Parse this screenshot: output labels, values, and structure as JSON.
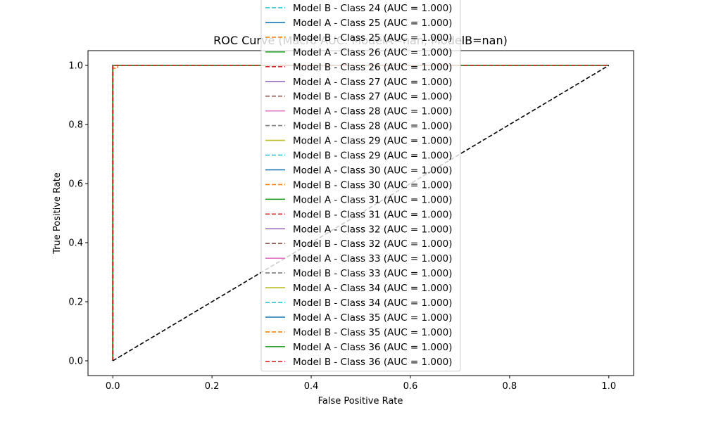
{
  "chart_data": {
    "type": "line",
    "title": "ROC Curve (Macro AUC: ModelA=nan, ModelB=nan)",
    "xlabel": "False Positive Rate",
    "ylabel": "True Positive Rate",
    "xlim": [
      -0.05,
      1.05
    ],
    "ylim": [
      -0.05,
      1.05
    ],
    "xticks": [
      "0.0",
      "0.2",
      "0.4",
      "0.6",
      "0.8",
      "1.0"
    ],
    "yticks": [
      "0.0",
      "0.2",
      "0.4",
      "0.6",
      "0.8",
      "1.0"
    ],
    "grid": false,
    "legend_position": "upper-center",
    "diagonal": {
      "x": [
        0,
        1
      ],
      "y": [
        0,
        1
      ],
      "color": "#000000",
      "style": "dashed"
    },
    "series": [
      {
        "name": "Model B - Class 24 (AUC = 1.000)",
        "color": "#17becf",
        "style": "dashed",
        "x": [
          0,
          0,
          1
        ],
        "y": [
          0,
          1,
          1
        ]
      },
      {
        "name": "Model A - Class 25 (AUC = 1.000)",
        "color": "#1f77b4",
        "style": "solid",
        "x": [
          0,
          0,
          1
        ],
        "y": [
          0,
          1,
          1
        ]
      },
      {
        "name": "Model B - Class 25 (AUC = 1.000)",
        "color": "#ff7f0e",
        "style": "dashed",
        "x": [
          0,
          0,
          0.01,
          0.01,
          1
        ],
        "y": [
          0,
          0.99,
          0.99,
          1,
          1
        ]
      },
      {
        "name": "Model A - Class 26 (AUC = 1.000)",
        "color": "#2ca02c",
        "style": "solid",
        "x": [
          0,
          0,
          1
        ],
        "y": [
          0,
          1,
          1
        ]
      },
      {
        "name": "Model B - Class 26 (AUC = 1.000)",
        "color": "#d62728",
        "style": "dashed",
        "x": [
          0,
          0,
          1
        ],
        "y": [
          0,
          1,
          1
        ]
      },
      {
        "name": "Model A - Class 27 (AUC = 1.000)",
        "color": "#9467bd",
        "style": "solid",
        "x": [
          0,
          0,
          1
        ],
        "y": [
          0,
          1,
          1
        ]
      },
      {
        "name": "Model B - Class 27 (AUC = 1.000)",
        "color": "#8c564b",
        "style": "dashed",
        "x": [
          0,
          0,
          1
        ],
        "y": [
          0,
          1,
          1
        ]
      },
      {
        "name": "Model A - Class 28 (AUC = 1.000)",
        "color": "#e377c2",
        "style": "solid",
        "x": [
          0,
          0,
          1
        ],
        "y": [
          0,
          1,
          1
        ]
      },
      {
        "name": "Model B - Class 28 (AUC = 1.000)",
        "color": "#7f7f7f",
        "style": "dashed",
        "x": [
          0,
          0,
          1
        ],
        "y": [
          0,
          1,
          1
        ]
      },
      {
        "name": "Model A - Class 29 (AUC = 1.000)",
        "color": "#bcbd22",
        "style": "solid",
        "x": [
          0,
          0,
          1
        ],
        "y": [
          0,
          1,
          1
        ]
      },
      {
        "name": "Model B - Class 29 (AUC = 1.000)",
        "color": "#17becf",
        "style": "dashed",
        "x": [
          0,
          0,
          1
        ],
        "y": [
          0,
          1,
          1
        ]
      },
      {
        "name": "Model A - Class 30 (AUC = 1.000)",
        "color": "#1f77b4",
        "style": "solid",
        "x": [
          0,
          0,
          1
        ],
        "y": [
          0,
          1,
          1
        ]
      },
      {
        "name": "Model B - Class 30 (AUC = 1.000)",
        "color": "#ff7f0e",
        "style": "dashed",
        "x": [
          0,
          0,
          1
        ],
        "y": [
          0,
          1,
          1
        ]
      },
      {
        "name": "Model A - Class 31 (AUC = 1.000)",
        "color": "#2ca02c",
        "style": "solid",
        "x": [
          0,
          0,
          1
        ],
        "y": [
          0,
          1,
          1
        ]
      },
      {
        "name": "Model B - Class 31 (AUC = 1.000)",
        "color": "#d62728",
        "style": "dashed",
        "x": [
          0,
          0,
          1
        ],
        "y": [
          0,
          1,
          1
        ]
      },
      {
        "name": "Model A - Class 32 (AUC = 1.000)",
        "color": "#9467bd",
        "style": "solid",
        "x": [
          0,
          0,
          1
        ],
        "y": [
          0,
          1,
          1
        ]
      },
      {
        "name": "Model B - Class 32 (AUC = 1.000)",
        "color": "#8c564b",
        "style": "dashed",
        "x": [
          0,
          0,
          1
        ],
        "y": [
          0,
          1,
          1
        ]
      },
      {
        "name": "Model A - Class 33 (AUC = 1.000)",
        "color": "#e377c2",
        "style": "solid",
        "x": [
          0,
          0,
          1
        ],
        "y": [
          0,
          1,
          1
        ]
      },
      {
        "name": "Model B - Class 33 (AUC = 1.000)",
        "color": "#7f7f7f",
        "style": "dashed",
        "x": [
          0,
          0,
          1
        ],
        "y": [
          0,
          1,
          1
        ]
      },
      {
        "name": "Model A - Class 34 (AUC = 1.000)",
        "color": "#bcbd22",
        "style": "solid",
        "x": [
          0,
          0,
          1
        ],
        "y": [
          0,
          1,
          1
        ]
      },
      {
        "name": "Model B - Class 34 (AUC = 1.000)",
        "color": "#17becf",
        "style": "dashed",
        "x": [
          0,
          0,
          1
        ],
        "y": [
          0,
          1,
          1
        ]
      },
      {
        "name": "Model A - Class 35 (AUC = 1.000)",
        "color": "#1f77b4",
        "style": "solid",
        "x": [
          0,
          0,
          1
        ],
        "y": [
          0,
          1,
          1
        ]
      },
      {
        "name": "Model B - Class 35 (AUC = 1.000)",
        "color": "#ff7f0e",
        "style": "dashed",
        "x": [
          0,
          0,
          1
        ],
        "y": [
          0,
          1,
          1
        ]
      },
      {
        "name": "Model A - Class 36 (AUC = 1.000)",
        "color": "#2ca02c",
        "style": "solid",
        "x": [
          0,
          0,
          1
        ],
        "y": [
          0,
          1,
          1
        ]
      },
      {
        "name": "Model B - Class 36 (AUC = 1.000)",
        "color": "#d62728",
        "style": "dashed",
        "x": [
          0,
          0,
          1
        ],
        "y": [
          0,
          1,
          1
        ]
      }
    ]
  }
}
